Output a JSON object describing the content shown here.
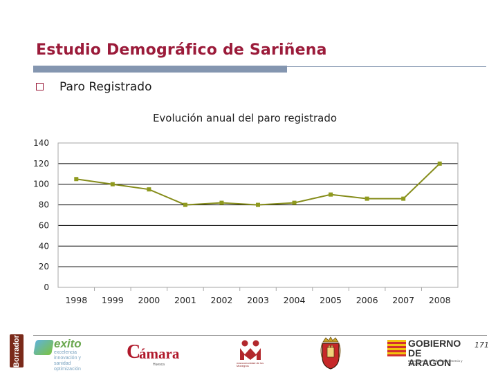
{
  "slide": {
    "title": "Estudio Demográfico de Sariñena",
    "bullet": "Paro Registrado",
    "page_number": "171"
  },
  "colors": {
    "title": "#9b1b3a",
    "title_bar": "#8496b0",
    "series_line": "#858c1a",
    "series_marker": "#8f9a1e",
    "gridline": "#000000",
    "plot_border": "#a6a6a6"
  },
  "chart_data": {
    "type": "line",
    "title": "Evolución anual del paro registrado",
    "categories": [
      "1998",
      "1999",
      "2000",
      "2001",
      "2002",
      "2003",
      "2004",
      "2005",
      "2006",
      "2007",
      "2008"
    ],
    "series": [
      {
        "values": [
          105,
          100,
          95,
          80,
          82,
          80,
          82,
          90,
          86,
          86,
          120
        ]
      }
    ],
    "ylim": [
      0,
      140
    ],
    "yticks": [
      0,
      20,
      40,
      60,
      80,
      100,
      120,
      140
    ],
    "grid": true,
    "legend": "none",
    "xlabel": "",
    "ylabel": ""
  },
  "logos": {
    "borrador": "Borrador",
    "exito_word": "exito",
    "exito_tagline": "excelencia innovación y sanidad optimización",
    "camara_word": "ámara",
    "camara_c": "C",
    "camara_sub": "Huesca",
    "mancomunidad_sub": "mancomunidad de los Monegros",
    "gobierno_line1": "GOBIERNO",
    "gobierno_line2": "DE ARAGON",
    "gobierno_sub": "Departamento de Industria, Comercio y Turismo"
  }
}
